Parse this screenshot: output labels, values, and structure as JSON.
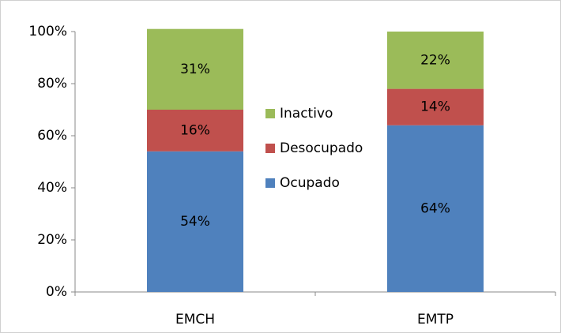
{
  "chart_data": {
    "type": "bar",
    "stacked": true,
    "categories": [
      "EMCH",
      "EMTP"
    ],
    "series": [
      {
        "name": "Ocupado",
        "color": "#4f81bd",
        "values": [
          54,
          64
        ],
        "value_labels": [
          "54%",
          "64%"
        ]
      },
      {
        "name": "Desocupado",
        "color": "#c0504d",
        "values": [
          16,
          14
        ],
        "value_labels": [
          "16%",
          "14%"
        ]
      },
      {
        "name": "Inactivo",
        "color": "#9bbb59",
        "values": [
          31,
          22
        ],
        "value_labels": [
          "31%",
          "22%"
        ]
      }
    ],
    "ylim": [
      0,
      100
    ],
    "yticks": [
      {
        "value": 0,
        "label": "0%"
      },
      {
        "value": 20,
        "label": "20%"
      },
      {
        "value": 40,
        "label": "40%"
      },
      {
        "value": 60,
        "label": "60%"
      },
      {
        "value": 80,
        "label": "80%"
      },
      {
        "value": 100,
        "label": "100%"
      }
    ],
    "grid": false,
    "legend": "center"
  }
}
